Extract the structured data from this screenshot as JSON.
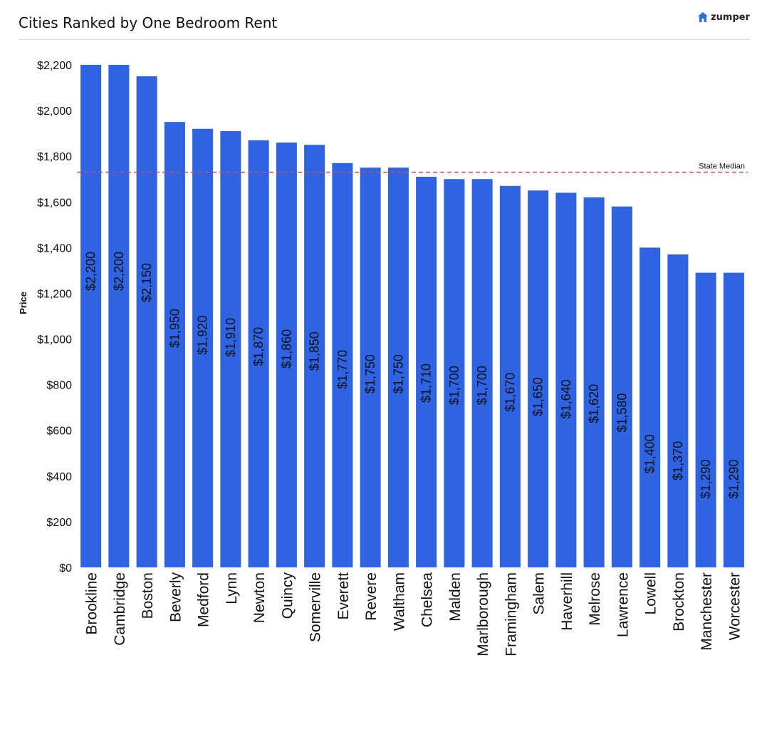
{
  "header": {
    "title": "Cities Ranked by One Bedroom Rent",
    "logo_text": "zumper",
    "logo_icon": "house-icon",
    "logo_color": "#2e6de0"
  },
  "chart_data": {
    "type": "bar",
    "title": "Cities Ranked by One Bedroom Rent",
    "xlabel": "",
    "ylabel": "Price",
    "ylim": [
      0,
      2200
    ],
    "yticks": [
      0,
      200,
      400,
      600,
      800,
      1000,
      1200,
      1400,
      1600,
      1800,
      2000,
      2200
    ],
    "ytick_labels": [
      "$0",
      "$200",
      "$400",
      "$600",
      "$800",
      "$1,000",
      "$1,200",
      "$1,400",
      "$1,600",
      "$1,800",
      "$2,000",
      "$2,200"
    ],
    "categories": [
      "Brookline",
      "Cambridge",
      "Boston",
      "Beverly",
      "Medford",
      "Lynn",
      "Newton",
      "Quincy",
      "Somerville",
      "Everett",
      "Revere",
      "Waltham",
      "Chelsea",
      "Malden",
      "Marlborough",
      "Framingham",
      "Salem",
      "Haverhill",
      "Melrose",
      "Lawrence",
      "Lowell",
      "Brockton",
      "Manchester",
      "Worcester"
    ],
    "values": [
      2200,
      2200,
      2150,
      1950,
      1920,
      1910,
      1870,
      1860,
      1850,
      1770,
      1750,
      1750,
      1710,
      1700,
      1700,
      1670,
      1650,
      1640,
      1620,
      1580,
      1400,
      1370,
      1290,
      1290
    ],
    "data_labels": [
      "$2,200",
      "$2,200",
      "$2,150",
      "$1,950",
      "$1,920",
      "$1,910",
      "$1,870",
      "$1,860",
      "$1,850",
      "$1,770",
      "$1,750",
      "$1,750",
      "$1,710",
      "$1,700",
      "$1,700",
      "$1,670",
      "$1,650",
      "$1,640",
      "$1,620",
      "$1,580",
      "$1,400",
      "$1,370",
      "$1,290",
      "$1,290"
    ],
    "reference_line": {
      "label": "State Median",
      "value": 1730,
      "color": "#e0474c"
    },
    "bar_color": "#2e63e3",
    "grid": false,
    "legend": "none"
  }
}
